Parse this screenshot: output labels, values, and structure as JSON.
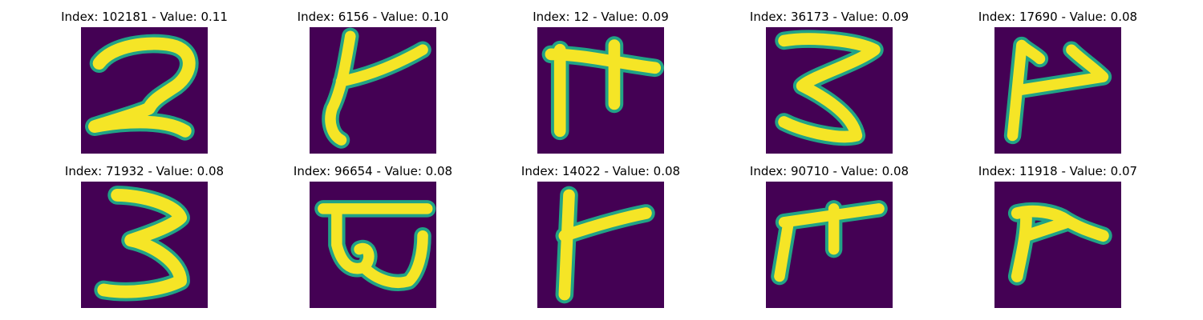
{
  "colors": {
    "background": "#440154",
    "stroke": "#f5e526",
    "edge": "#21a386"
  },
  "panels": [
    {
      "title": "Index: 102181 - Value: 0.11",
      "digit_shape": "2"
    },
    {
      "title": "Index: 6156 - Value: 0.10",
      "digit_shape": "stroke-t"
    },
    {
      "title": "Index: 12 - Value: 0.09",
      "digit_shape": "stroke-m"
    },
    {
      "title": "Index: 36173 - Value: 0.09",
      "digit_shape": "3"
    },
    {
      "title": "Index: 17690 - Value: 0.08",
      "digit_shape": "stroke-p"
    },
    {
      "title": "Index: 71932 - Value: 0.08",
      "digit_shape": "3"
    },
    {
      "title": "Index: 96654 - Value: 0.08",
      "digit_shape": "stroke-b"
    },
    {
      "title": "Index: 14022 - Value: 0.08",
      "digit_shape": "stroke-f"
    },
    {
      "title": "Index: 90710 - Value: 0.08",
      "digit_shape": "stroke-m"
    },
    {
      "title": "Index: 11918 - Value: 0.07",
      "digit_shape": "stroke-r"
    }
  ]
}
